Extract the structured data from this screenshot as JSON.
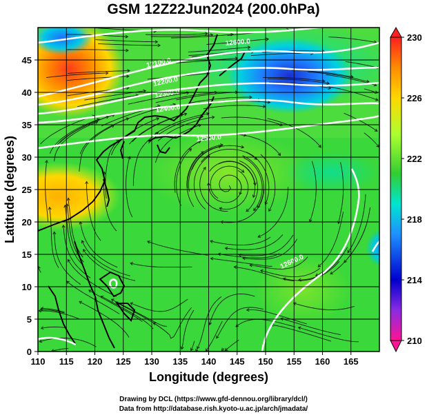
{
  "title": "GSM 12Z22Jun2024 (200.0hPa)",
  "xaxis": {
    "label": "Longitude (degrees)",
    "ticks": [
      "110",
      "115",
      "120",
      "125",
      "130",
      "135",
      "140",
      "145",
      "150",
      "155",
      "160",
      "165"
    ]
  },
  "yaxis": {
    "label": "Latitude  (degrees)",
    "ticks": [
      "0",
      "5",
      "10",
      "15",
      "20",
      "25",
      "30",
      "35",
      "40",
      "45"
    ]
  },
  "colorbar": {
    "ticks": [
      "210",
      "214",
      "218",
      "222",
      "226",
      "230"
    ],
    "range": [
      210,
      230
    ]
  },
  "contours": [
    "12600.0",
    "12100.0",
    "12200.0",
    "12300.0",
    "12400.0",
    "12500.0",
    "12600.0"
  ],
  "credits": [
    "Drawing by DCL (https://www.gfd-dennou.org/library/dcl/)",
    "Data from http://database.rish.kyoto-u.ac.jp/arch/jmadata/"
  ],
  "chart_data": {
    "type": "heatmap",
    "title": "GSM 12Z22Jun2024 (200.0hPa)",
    "xlabel": "Longitude (degrees)",
    "ylabel": "Latitude  (degrees)",
    "xlim": [
      110,
      170
    ],
    "ylim": [
      0,
      50
    ],
    "colorbar_range": [
      210,
      230
    ],
    "colormap": [
      "#ff1493",
      "#0000cd",
      "#1e90ff",
      "#00e5d0",
      "#32cd32",
      "#adff2f",
      "#ffd700",
      "#ff8c00",
      "#ff0000"
    ],
    "height_contours_m": [
      12100,
      12200,
      12300,
      12400,
      12500,
      12600
    ]
  }
}
